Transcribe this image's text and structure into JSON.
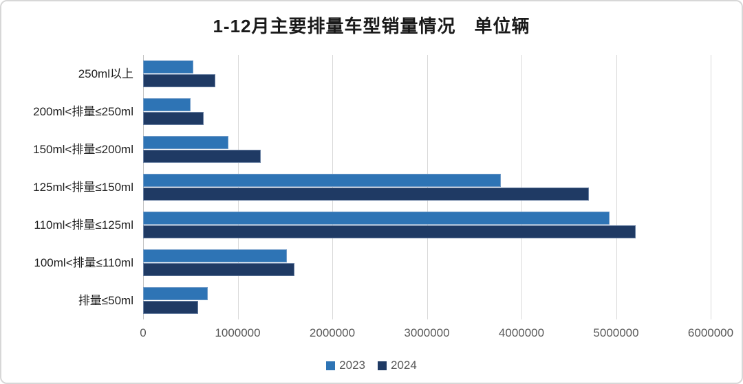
{
  "frame": {
    "background": "#ffffff",
    "border_color": "#d7d7d7"
  },
  "chart_data": {
    "type": "bar",
    "orientation": "horizontal",
    "title": "1-12月主要排量车型销量情况　单位辆",
    "categories": [
      "250ml以上",
      "200ml<排量≤250ml",
      "150ml<排量≤200ml",
      "125ml<排量≤150ml",
      "110ml<排量≤125ml",
      "100ml<排量≤110ml",
      "排量≤50ml"
    ],
    "series": [
      {
        "name": "2023",
        "color": "#2E74B5",
        "values": [
          530000,
          500000,
          900000,
          3780000,
          4930000,
          1520000,
          680000
        ]
      },
      {
        "name": "2024",
        "color": "#1F3A64",
        "values": [
          760000,
          640000,
          1240000,
          4710000,
          5210000,
          1600000,
          580000
        ]
      }
    ],
    "xlim": [
      0,
      6000000
    ],
    "x_ticks": [
      0,
      1000000,
      2000000,
      3000000,
      4000000,
      5000000,
      6000000
    ],
    "x_tick_labels": [
      "0",
      "1000000",
      "2000000",
      "3000000",
      "4000000",
      "5000000",
      "6000000"
    ],
    "grid": true,
    "gridline_color": "#d9d9d9",
    "axis_label_color": "#595959",
    "legend_position": "bottom"
  }
}
